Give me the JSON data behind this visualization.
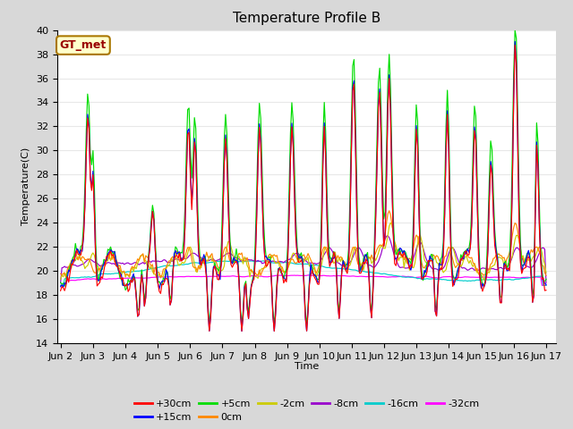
{
  "title": "Temperature Profile B",
  "xlabel": "Time",
  "ylabel": "Temperature(C)",
  "ylim": [
    14,
    40
  ],
  "yticks": [
    14,
    16,
    18,
    20,
    22,
    24,
    26,
    28,
    30,
    32,
    34,
    36,
    38,
    40
  ],
  "x_labels": [
    "Jun 2",
    "Jun 3",
    "Jun 4",
    "Jun 5",
    "Jun 6",
    "Jun 7",
    "Jun 8",
    "Jun 9",
    "Jun 10",
    "Jun 11",
    "Jun 12",
    "Jun 13",
    "Jun 14",
    "Jun 15",
    "Jun 16",
    "Jun 17"
  ],
  "annotation_text": "GT_met",
  "annotation_bg": "#ffffcc",
  "annotation_border": "#aa7700",
  "annotation_text_color": "#990000",
  "series_colors": {
    "+30cm": "#ff0000",
    "+15cm": "#0000ff",
    "+5cm": "#00dd00",
    "0cm": "#ff8800",
    "-2cm": "#cccc00",
    "-8cm": "#9900cc",
    "-16cm": "#00cccc",
    "-32cm": "#ff00ff"
  },
  "bg_color": "#d8d8d8",
  "plot_bg": "#ffffff",
  "grid_color": "#e8e8e8",
  "title_fontsize": 11,
  "axis_fontsize": 8,
  "legend_fontsize": 8
}
